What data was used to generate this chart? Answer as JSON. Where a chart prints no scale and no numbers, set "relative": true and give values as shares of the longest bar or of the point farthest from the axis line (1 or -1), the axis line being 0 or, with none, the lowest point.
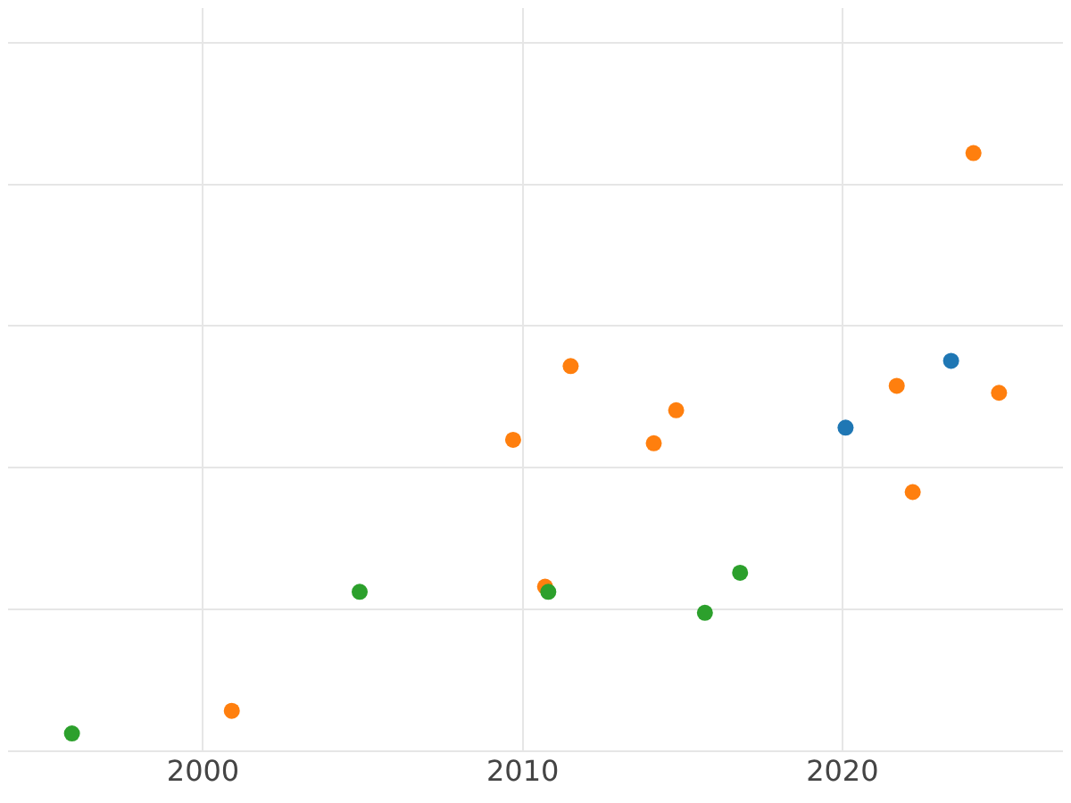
{
  "chart_data": {
    "type": "scatter",
    "relative": true,
    "grid": true,
    "legend": false,
    "marker": "circle",
    "xlim": [
      1993.9,
      2026.9
    ],
    "xticks": [
      2000,
      2010,
      2020
    ],
    "series": [
      {
        "color": "#2ca02c",
        "x": [
          1995.9,
          2004.9,
          2010.8,
          2015.7,
          2016.8
        ],
        "values": [
          0,
          0.244,
          0.244,
          0.208,
          0.277
        ]
      },
      {
        "color": "#ff7f0e",
        "x": [
          2000.9,
          2009.7,
          2010.7,
          2011.5,
          2014.1,
          2014.8,
          2021.7,
          2022.2,
          2024.1,
          2024.9
        ],
        "values": [
          0.039,
          0.506,
          0.253,
          0.633,
          0.5,
          0.557,
          0.599,
          0.416,
          1,
          0.587
        ]
      },
      {
        "color": "#1f77b4",
        "x": [
          2020.1,
          2023.4
        ],
        "values": [
          0.527,
          0.642
        ]
      }
    ]
  }
}
